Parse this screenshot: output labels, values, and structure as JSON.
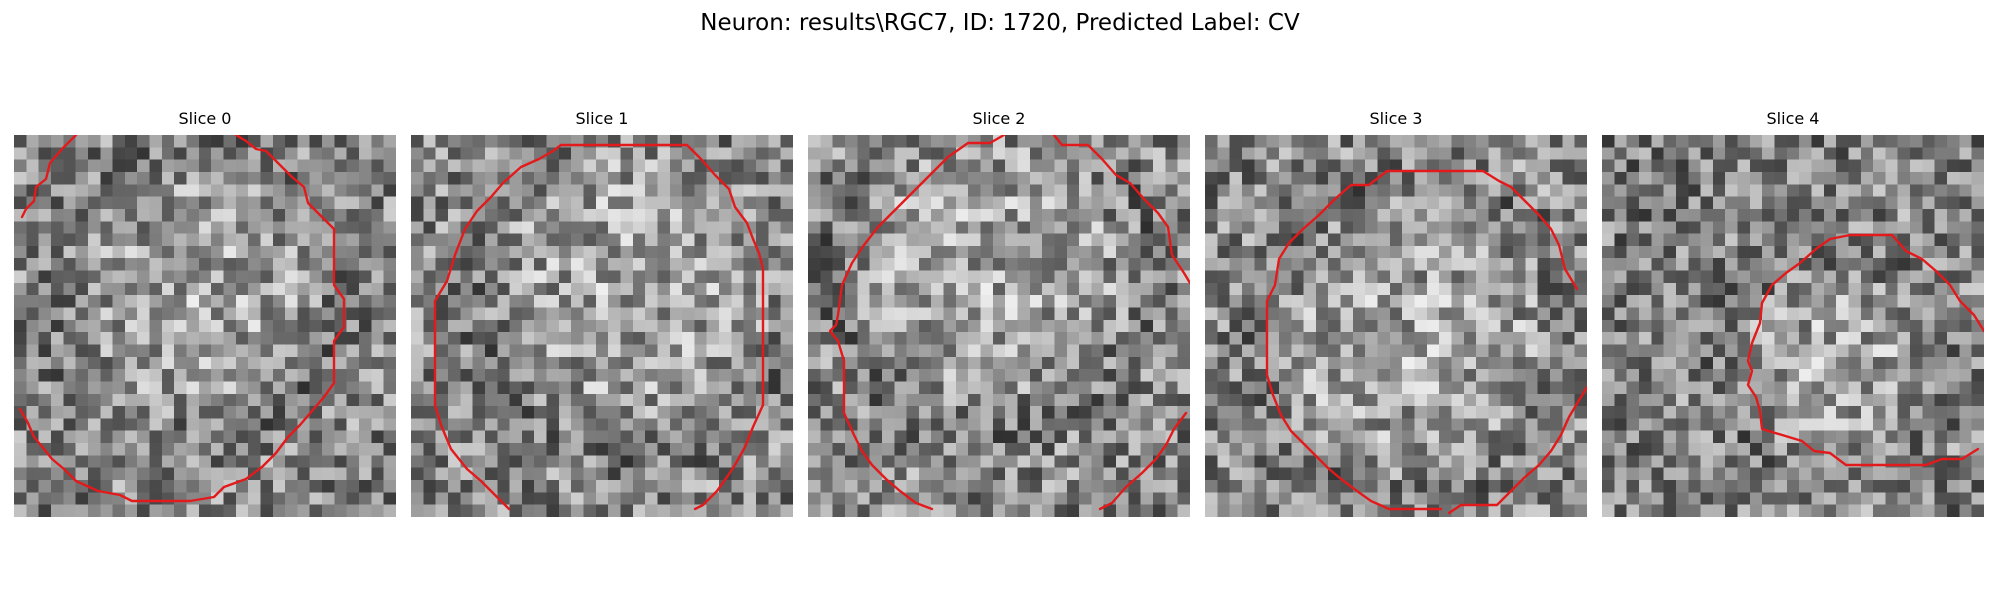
{
  "figure": {
    "suptitle": "Neuron: results\\RGC7, ID: 1720, Predicted Label: CV"
  },
  "panels": [
    {
      "title": "Slice 0",
      "seed": 101,
      "bright_center": [
        0.48,
        0.42
      ],
      "bright_radius": 0.36
    },
    {
      "title": "Slice 1",
      "seed": 202,
      "bright_center": [
        0.6,
        0.4
      ],
      "bright_radius": 0.42
    },
    {
      "title": "Slice 2",
      "seed": 303,
      "bright_center": [
        0.48,
        0.35
      ],
      "bright_radius": 0.4
    },
    {
      "title": "Slice 3",
      "seed": 404,
      "bright_center": [
        0.55,
        0.55
      ],
      "bright_radius": 0.4
    },
    {
      "title": "Slice 4",
      "seed": 505,
      "bright_center": [
        0.6,
        0.6
      ],
      "bright_radius": 0.28
    }
  ],
  "colors": {
    "contour": "#e31a1c",
    "background": "#ffffff"
  },
  "colormap": "gray"
}
